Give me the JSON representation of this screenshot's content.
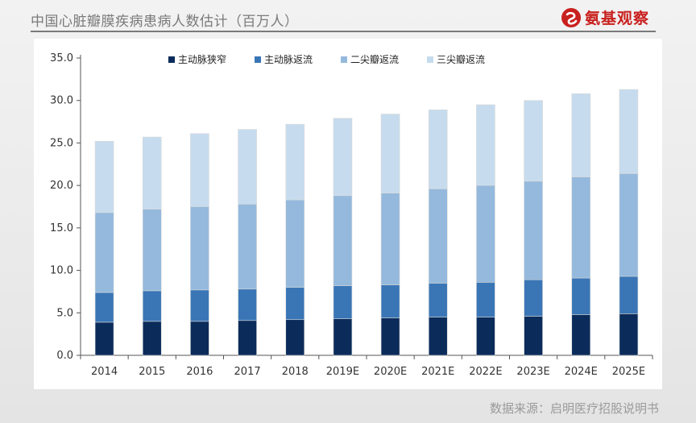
{
  "header": {
    "title": "中国心脏瓣膜疾病患病人数估计（百万人）",
    "brand_name": "氨基观察"
  },
  "source": "数据来源：启明医疗招股说明书",
  "colors": {
    "series": [
      "#0b2c5b",
      "#3a76b6",
      "#94b9dd",
      "#c6dcee"
    ],
    "brand": "#c8201e"
  },
  "chart_data": {
    "type": "bar",
    "stacked": true,
    "title": "中国心脏瓣膜疾病患病人数估计（百万人）",
    "xlabel": "",
    "ylabel": "",
    "ylim": [
      0,
      35
    ],
    "yticks": [
      "0.0",
      "5.0",
      "10.0",
      "15.0",
      "20.0",
      "25.0",
      "30.0",
      "35.0"
    ],
    "ytick_values": [
      0,
      5,
      10,
      15,
      20,
      25,
      30,
      35
    ],
    "categories": [
      "2014",
      "2015",
      "2016",
      "2017",
      "2018",
      "2019E",
      "2020E",
      "2021E",
      "2022E",
      "2023E",
      "2024E",
      "2025E"
    ],
    "legend_position": "top",
    "grid": false,
    "series": [
      {
        "name": "主动脉狭窄",
        "values": [
          3.9,
          4.0,
          4.0,
          4.1,
          4.2,
          4.3,
          4.4,
          4.5,
          4.5,
          4.6,
          4.8,
          4.9
        ]
      },
      {
        "name": "主动脉返流",
        "values": [
          3.5,
          3.6,
          3.7,
          3.7,
          3.8,
          3.9,
          3.9,
          4.0,
          4.1,
          4.3,
          4.3,
          4.4
        ]
      },
      {
        "name": "二尖瓣返流",
        "values": [
          9.4,
          9.6,
          9.8,
          10.0,
          10.3,
          10.6,
          10.8,
          11.1,
          11.4,
          11.6,
          11.9,
          12.1
        ]
      },
      {
        "name": "三尖瓣返流",
        "values": [
          8.4,
          8.5,
          8.6,
          8.8,
          8.9,
          9.1,
          9.3,
          9.3,
          9.5,
          9.5,
          9.8,
          9.9
        ]
      }
    ]
  }
}
